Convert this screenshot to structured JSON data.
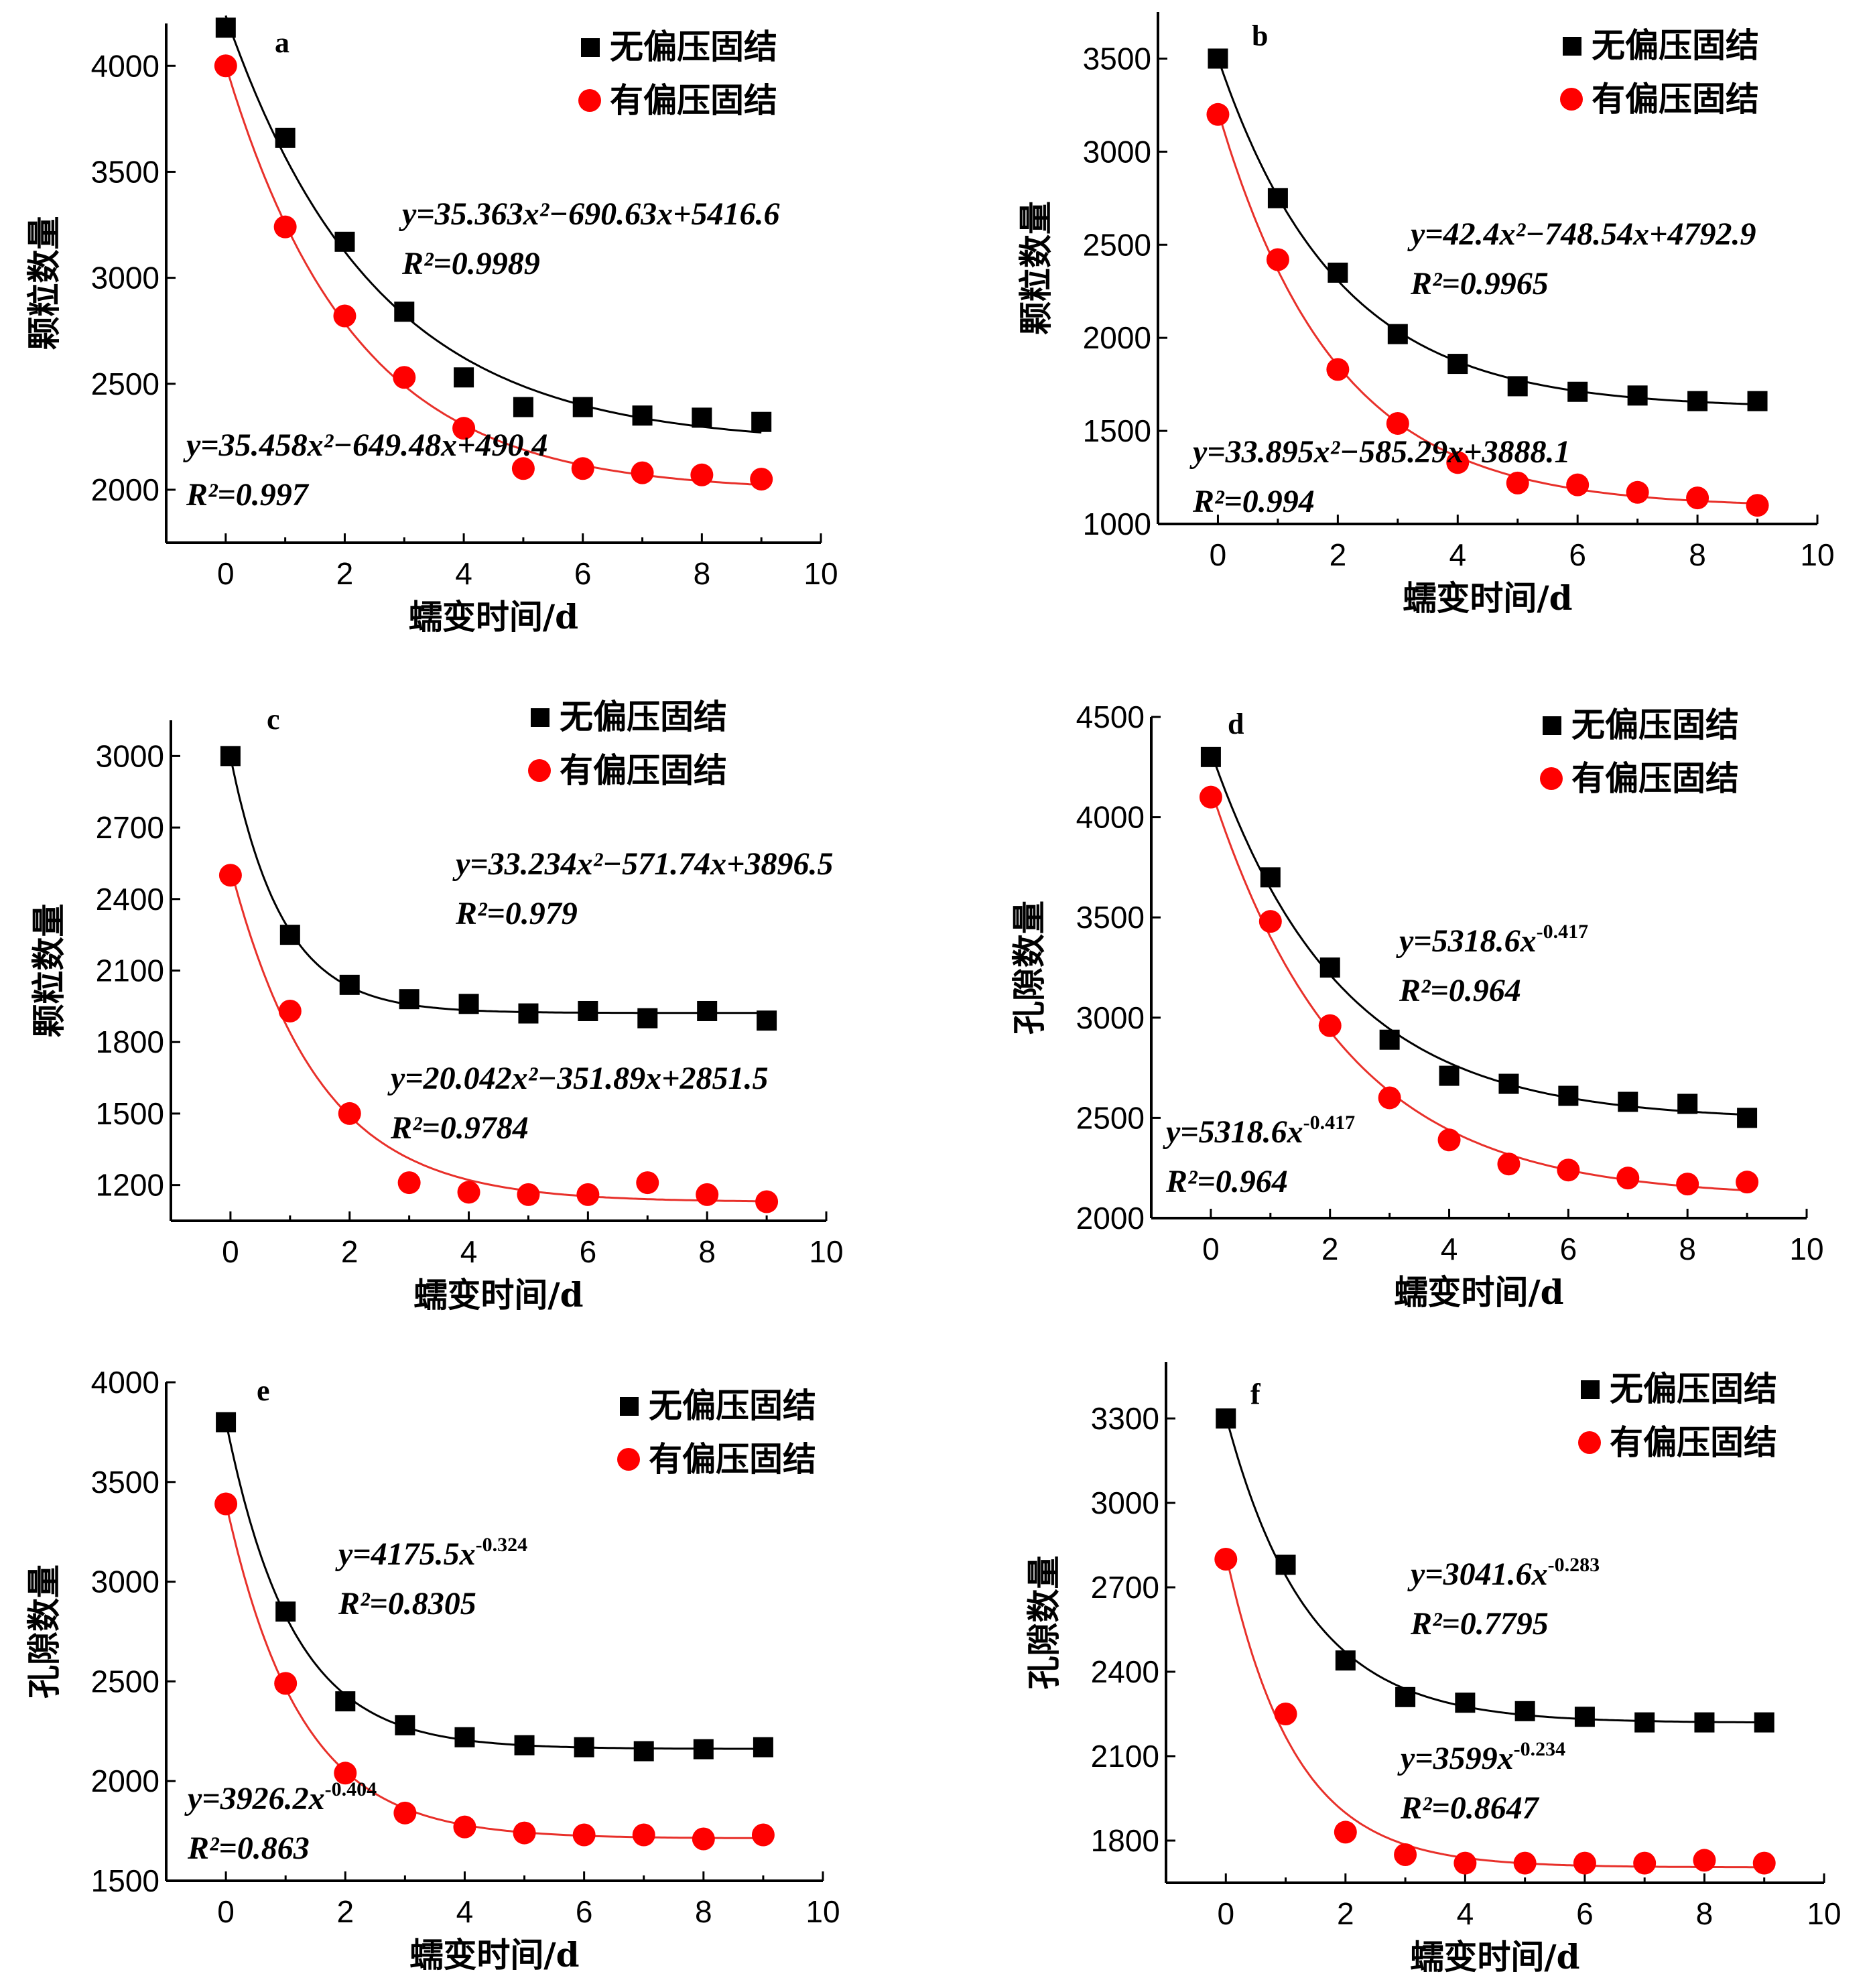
{
  "legend": {
    "series_black": "无偏压固结",
    "series_red": "有偏压固结"
  },
  "colors": {
    "black_series": "#000000",
    "red_series": "#ff0000",
    "black_curve": "#000000",
    "red_curve": "#e8302a"
  },
  "chart_data": [
    {
      "panel": "a",
      "type": "scatter",
      "xlabel": "蠕变时间/d",
      "ylabel": "颗粒数量",
      "xlim": [
        -1,
        10
      ],
      "ylim": [
        1750,
        4200
      ],
      "xticks": [
        0,
        2,
        4,
        6,
        8,
        10
      ],
      "yticks": [
        2000,
        2500,
        3000,
        3500,
        4000
      ],
      "x": [
        0,
        1,
        2,
        3,
        4,
        5,
        6,
        7,
        8,
        9
      ],
      "series": [
        {
          "name": "无偏压固结",
          "values": [
            4180,
            3660,
            3170,
            2840,
            2530,
            2390,
            2390,
            2350,
            2340,
            2320
          ],
          "equation": "y=35.363x²−690.63x+5416.6",
          "r2": "R²=0.9989"
        },
        {
          "name": "有偏压固结",
          "values": [
            4000,
            3240,
            2820,
            2530,
            2290,
            2100,
            2100,
            2080,
            2070,
            2050
          ],
          "equation": "y=35.458x²−649.48x+490.4",
          "r2": "R²=0.997"
        }
      ]
    },
    {
      "panel": "b",
      "type": "scatter",
      "xlabel": "蠕变时间/d",
      "ylabel": "颗粒数量",
      "xlim": [
        -1,
        10
      ],
      "ylim": [
        1000,
        3750
      ],
      "xticks": [
        0,
        2,
        4,
        6,
        8,
        10
      ],
      "yticks": [
        1000,
        1500,
        2000,
        2500,
        3000,
        3500
      ],
      "x": [
        0,
        1,
        2,
        3,
        4,
        5,
        6,
        7,
        8,
        9
      ],
      "series": [
        {
          "name": "无偏压固结",
          "values": [
            3500,
            2750,
            2350,
            2020,
            1860,
            1740,
            1710,
            1690,
            1660,
            1660
          ],
          "equation": "y=42.4x²−748.54x+4792.9",
          "r2": "R²=0.9965"
        },
        {
          "name": "有偏压固结",
          "values": [
            3200,
            2420,
            1830,
            1540,
            1330,
            1220,
            1210,
            1170,
            1140,
            1100
          ],
          "equation": "y=33.895x²−585.29x+3888.1",
          "r2": "R²=0.994"
        }
      ]
    },
    {
      "panel": "c",
      "type": "scatter",
      "xlabel": "蠕变时间/d",
      "ylabel": "颗粒数量",
      "xlim": [
        -1,
        10
      ],
      "ylim": [
        1050,
        3150
      ],
      "xticks": [
        0,
        2,
        4,
        6,
        8,
        10
      ],
      "yticks": [
        1200,
        1500,
        1800,
        2100,
        2400,
        2700,
        3000
      ],
      "x": [
        0,
        1,
        2,
        3,
        4,
        5,
        6,
        7,
        8,
        9
      ],
      "series": [
        {
          "name": "无偏压固结",
          "values": [
            3000,
            2250,
            2040,
            1980,
            1960,
            1920,
            1930,
            1900,
            1930,
            1890
          ],
          "equation": "y=33.234x²−571.74x+3896.5",
          "r2": "R²=0.979"
        },
        {
          "name": "有偏压固结",
          "values": [
            2500,
            1930,
            1500,
            1210,
            1170,
            1160,
            1160,
            1210,
            1160,
            1130
          ],
          "equation": "y=20.042x²−351.89x+2851.5",
          "r2": "R²=0.9784"
        }
      ]
    },
    {
      "panel": "d",
      "type": "scatter",
      "xlabel": "蠕变时间/d",
      "ylabel": "孔隙数量",
      "xlim": [
        -1,
        10
      ],
      "ylim": [
        2000,
        4500
      ],
      "xticks": [
        0,
        2,
        4,
        6,
        8,
        10
      ],
      "yticks": [
        2000,
        2500,
        3000,
        3500,
        4000,
        4500
      ],
      "x": [
        0,
        1,
        2,
        3,
        4,
        5,
        6,
        7,
        8,
        9
      ],
      "series": [
        {
          "name": "无偏压固结",
          "values": [
            4300,
            3700,
            3250,
            2890,
            2710,
            2670,
            2610,
            2580,
            2570,
            2500
          ],
          "equation": "y=5318.6x^-0.417",
          "r2": "R²=0.964"
        },
        {
          "name": "有偏压固结",
          "values": [
            4100,
            3480,
            2960,
            2600,
            2390,
            2270,
            2240,
            2200,
            2170,
            2180
          ],
          "equation": "y=5318.6x^-0.417",
          "r2": "R²=0.964"
        }
      ]
    },
    {
      "panel": "e",
      "type": "scatter",
      "xlabel": "蠕变时间/d",
      "ylabel": "孔隙数量",
      "xlim": [
        -1,
        10
      ],
      "ylim": [
        1500,
        4000
      ],
      "xticks": [
        0,
        2,
        4,
        6,
        8,
        10
      ],
      "yticks": [
        1500,
        2000,
        2500,
        3000,
        3500,
        4000
      ],
      "x": [
        0,
        1,
        2,
        3,
        4,
        5,
        6,
        7,
        8,
        9
      ],
      "series": [
        {
          "name": "无偏压固结",
          "values": [
            3800,
            2850,
            2400,
            2280,
            2220,
            2180,
            2170,
            2150,
            2160,
            2170
          ],
          "equation": "y=4175.5x^-0.324",
          "r2": "R²=0.8305"
        },
        {
          "name": "有偏压固结",
          "values": [
            3390,
            2490,
            2040,
            1840,
            1770,
            1740,
            1730,
            1730,
            1710,
            1730
          ],
          "equation": "y=3926.2x^-0.404",
          "r2": "R²=0.863"
        }
      ]
    },
    {
      "panel": "f",
      "type": "scatter",
      "xlabel": "蠕变时间/d",
      "ylabel": "孔隙数量",
      "xlim": [
        -1,
        10
      ],
      "ylim": [
        1650,
        3500
      ],
      "xticks": [
        0,
        2,
        4,
        6,
        8,
        10
      ],
      "yticks": [
        1800,
        2100,
        2400,
        2700,
        3000,
        3300
      ],
      "x": [
        0,
        1,
        2,
        3,
        4,
        5,
        6,
        7,
        8,
        9
      ],
      "series": [
        {
          "name": "无偏压固结",
          "values": [
            3300,
            2780,
            2440,
            2310,
            2290,
            2260,
            2240,
            2220,
            2220,
            2220
          ],
          "equation": "y=3041.6x^-0.283",
          "r2": "R²=0.7795"
        },
        {
          "name": "有偏压固结",
          "values": [
            2800,
            2250,
            1830,
            1750,
            1720,
            1720,
            1720,
            1720,
            1730,
            1720
          ],
          "equation": "y=3599x^-0.234",
          "r2": "R²=0.8647"
        }
      ]
    }
  ]
}
